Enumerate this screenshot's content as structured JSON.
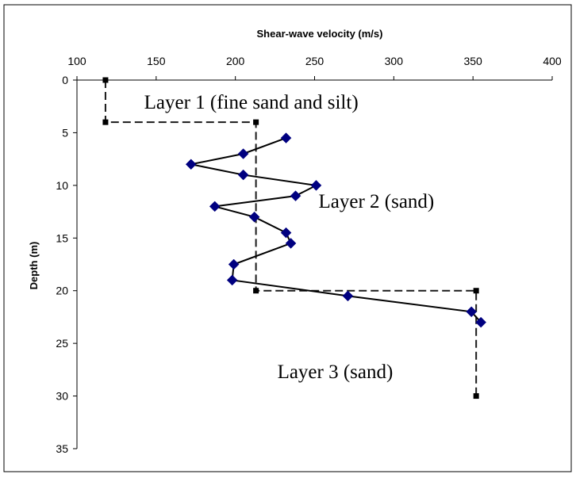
{
  "chart_data": {
    "type": "scatter",
    "xlabel": "Shear-wave velocity (m/s)",
    "ylabel": "Depth (m)",
    "xlim": [
      100,
      400
    ],
    "ylim": [
      0,
      35
    ],
    "y_inverted": true,
    "x_axis_position": "top",
    "x_ticks": [
      "100",
      "150",
      "200",
      "250",
      "300",
      "350",
      "400"
    ],
    "y_ticks": [
      "0",
      "5",
      "10",
      "15",
      "20",
      "25",
      "30",
      "35"
    ],
    "grid": false,
    "legend": "none",
    "series": [
      {
        "style": "dashed-line-square-markers",
        "color": "#000000",
        "points": [
          {
            "x": 118,
            "y": 0
          },
          {
            "x": 118,
            "y": 4
          },
          {
            "x": 213,
            "y": 4
          },
          {
            "x": 213,
            "y": 20
          },
          {
            "x": 352,
            "y": 20
          },
          {
            "x": 352,
            "y": 30
          }
        ]
      },
      {
        "style": "solid-line-diamond-markers",
        "color": "#000080",
        "points": [
          {
            "x": 232,
            "y": 5.5
          },
          {
            "x": 205,
            "y": 7
          },
          {
            "x": 172,
            "y": 8
          },
          {
            "x": 205,
            "y": 9
          },
          {
            "x": 251,
            "y": 10
          },
          {
            "x": 238,
            "y": 11
          },
          {
            "x": 187,
            "y": 12
          },
          {
            "x": 212,
            "y": 13
          },
          {
            "x": 232,
            "y": 14.5
          },
          {
            "x": 235,
            "y": 15.5
          },
          {
            "x": 199,
            "y": 17.5
          },
          {
            "x": 198,
            "y": 19
          },
          {
            "x": 271,
            "y": 20.5
          },
          {
            "x": 349,
            "y": 22
          },
          {
            "x": 355,
            "y": 23
          }
        ]
      }
    ],
    "annotations": [
      {
        "text": "Layer 1 (fine sand and silt)",
        "x": 210,
        "y": 2.7
      },
      {
        "text": "Layer 2 (sand)",
        "x": 289,
        "y": 12.1
      },
      {
        "text": "Layer 3 (sand)",
        "x": 263,
        "y": 28.3
      }
    ]
  }
}
